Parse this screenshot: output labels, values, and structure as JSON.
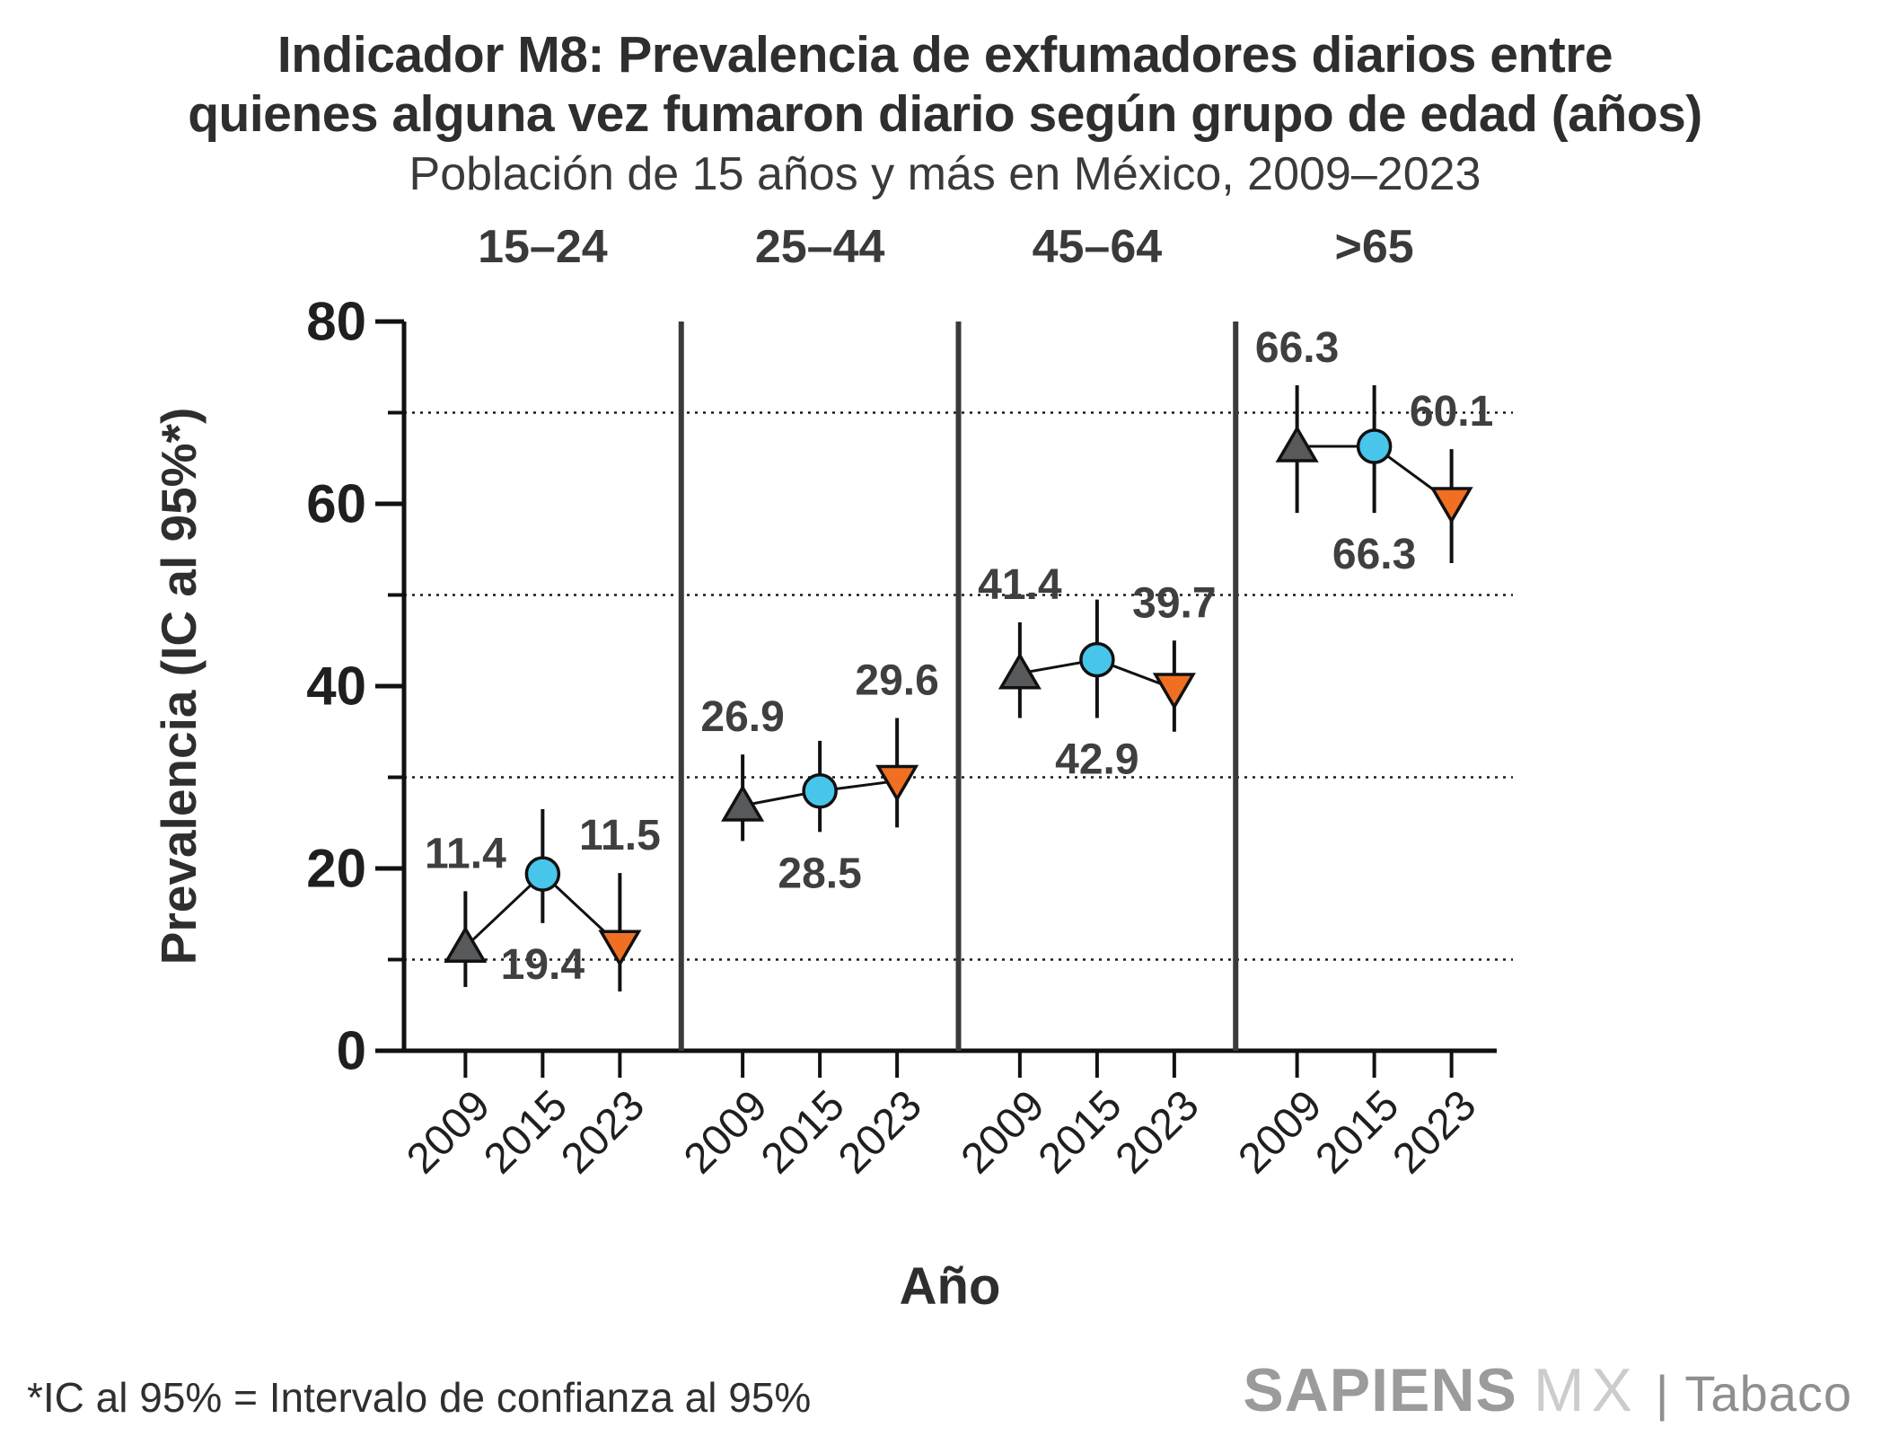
{
  "chart_data": {
    "type": "scatter",
    "title": "Indicador M8: Prevalencia de exfumadores diarios entre quienes alguna vez fumaron diario según grupo de edad (años)",
    "title_line1": "Indicador M8: Prevalencia de exfumadores diarios entre",
    "title_line2": "quienes alguna vez fumaron diario según grupo de edad (años)",
    "subtitle": "Población de 15 años y más en México, 2009–2023",
    "xlabel": "Año",
    "ylabel": "Prevalencia (IC al 95%*)",
    "ylim": [
      0,
      80
    ],
    "yticks_major": [
      0,
      20,
      40,
      60,
      80
    ],
    "yticks_minor_gridlines": [
      10,
      30,
      50,
      70
    ],
    "grid": "dotted horizontal lines at 10, 30, 50, 70",
    "legend": "none",
    "error_bars": "95% confidence intervals, vertical black lines",
    "x_categories_years": [
      "2009",
      "2015",
      "2023"
    ],
    "year_styles": {
      "2009": {
        "marker": "triangle-up",
        "color": "#58595b",
        "label_side": "above"
      },
      "2015": {
        "marker": "circle",
        "color": "#47c5ea",
        "label_side": "below"
      },
      "2023": {
        "marker": "triangle-down",
        "color": "#f06f23",
        "label_side": "above"
      }
    },
    "groups": [
      {
        "label": "15–24",
        "points": [
          {
            "year": "2009",
            "value": 11.4,
            "value_label": "11.4",
            "ci_low": 7.0,
            "ci_high": 17.5
          },
          {
            "year": "2015",
            "value": 19.4,
            "value_label": "19.4",
            "ci_low": 14.0,
            "ci_high": 26.5
          },
          {
            "year": "2023",
            "value": 11.5,
            "value_label": "11.5",
            "ci_low": 6.5,
            "ci_high": 19.5
          }
        ]
      },
      {
        "label": "25–44",
        "points": [
          {
            "year": "2009",
            "value": 26.9,
            "value_label": "26.9",
            "ci_low": 23.0,
            "ci_high": 32.5
          },
          {
            "year": "2015",
            "value": 28.5,
            "value_label": "28.5",
            "ci_low": 24.0,
            "ci_high": 34.0
          },
          {
            "year": "2023",
            "value": 29.6,
            "value_label": "29.6",
            "ci_low": 24.5,
            "ci_high": 36.5
          }
        ]
      },
      {
        "label": "45–64",
        "points": [
          {
            "year": "2009",
            "value": 41.4,
            "value_label": "41.4",
            "ci_low": 36.5,
            "ci_high": 47.0
          },
          {
            "year": "2015",
            "value": 42.9,
            "value_label": "42.9",
            "ci_low": 36.5,
            "ci_high": 49.5
          },
          {
            "year": "2023",
            "value": 39.7,
            "value_label": "39.7",
            "ci_low": 35.0,
            "ci_high": 45.0
          }
        ]
      },
      {
        "label": ">65",
        "points": [
          {
            "year": "2009",
            "value": 66.3,
            "value_label": "66.3",
            "ci_low": 59.0,
            "ci_high": 73.0
          },
          {
            "year": "2015",
            "value": 66.3,
            "value_label": "66.3",
            "ci_low": 59.0,
            "ci_high": 73.0
          },
          {
            "year": "2023",
            "value": 60.1,
            "value_label": "60.1",
            "ci_low": 53.5,
            "ci_high": 66.0
          }
        ]
      }
    ],
    "colors": {
      "axis": "#111111",
      "separator": "#3a3a3a",
      "gridline": "#1a1a1a",
      "text_dark": "#2e2e2e",
      "data_label": "#3f3f3f",
      "marker_2009": "#58595b",
      "marker_2015": "#47c5ea",
      "marker_2023": "#f06f23"
    }
  },
  "footer": {
    "footnote": "*IC al 95% = Intervalo de confianza al 95%",
    "brand": {
      "name": "SAPIENS",
      "suffix": "MX",
      "divider": "|",
      "product": "Tabaco"
    }
  }
}
